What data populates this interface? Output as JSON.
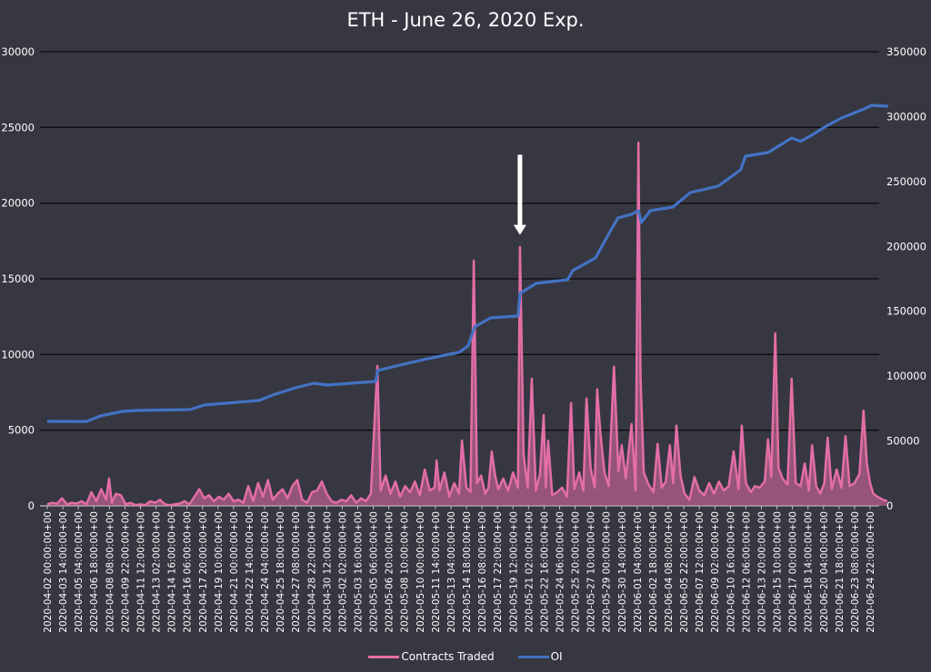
{
  "chart_data": {
    "type": "line",
    "title": "ETH - June 26, 2020 Exp.",
    "grid": true,
    "legend_position": "bottom",
    "y_left": {
      "range": [
        0,
        30000
      ],
      "ticks": [
        "0",
        "5000",
        "10000",
        "15000",
        "20000",
        "25000",
        "30000"
      ]
    },
    "y_right": {
      "range": [
        0,
        350000
      ],
      "ticks": [
        "0",
        "50000",
        "100000",
        "150000",
        "200000",
        "250000",
        "300000",
        "350000"
      ]
    },
    "x_ticks": [
      "2020-04-02 00:00:00+00",
      "2020-04-03 14:00:00+00",
      "2020-04-05 04:00:00+00",
      "2020-04-06 18:00:00+00",
      "2020-04-08 08:00:00+00",
      "2020-04-09 22:00:00+00",
      "2020-04-11 12:00:00+00",
      "2020-04-13 02:00:00+00",
      "2020-04-14 16:00:00+00",
      "2020-04-16 06:00:00+00",
      "2020-04-17 20:00:00+00",
      "2020-04-19 10:00:00+00",
      "2020-04-21 00:00:00+00",
      "2020-04-22 14:00:00+00",
      "2020-04-24 04:00:00+00",
      "2020-04-25 18:00:00+00",
      "2020-04-27 08:00:00+00",
      "2020-04-28 22:00:00+00",
      "2020-04-30 12:00:00+00",
      "2020-05-02 02:00:00+00",
      "2020-05-03 16:00:00+00",
      "2020-05-05 06:00:00+00",
      "2020-05-06 20:00:00+00",
      "2020-05-08 10:00:00+00",
      "2020-05-10 00:00:00+00",
      "2020-05-11 14:00:00+00",
      "2020-05-13 04:00:00+00",
      "2020-05-14 18:00:00+00",
      "2020-05-16 08:00:00+00",
      "2020-05-17 22:00:00+00",
      "2020-05-19 12:00:00+00",
      "2020-05-21 02:00:00+00",
      "2020-05-22 16:00:00+00",
      "2020-05-24 06:00:00+00",
      "2020-05-25 20:00:00+00",
      "2020-05-27 10:00:00+00",
      "2020-05-29 00:00:00+00",
      "2020-05-30 14:00:00+00",
      "2020-06-01 04:00:00+00",
      "2020-06-02 18:00:00+00",
      "2020-06-04 08:00:00+00",
      "2020-06-05 22:00:00+00",
      "2020-06-07 12:00:00+00",
      "2020-06-09 02:00:00+00",
      "2020-06-10 16:00:00+00",
      "2020-06-12 06:00:00+00",
      "2020-06-13 20:00:00+00",
      "2020-06-15 10:00:00+00",
      "2020-06-17 00:00:00+00",
      "2020-06-18 14:00:00+00",
      "2020-06-20 04:00:00+00",
      "2020-06-21 18:00:00+00",
      "2020-06-23 08:00:00+00",
      "2020-06-24 22:00:00+00"
    ],
    "series": [
      {
        "name": "Contracts Traded",
        "axis": "left",
        "color": "#e36ea6",
        "points": [
          [
            "2020-04-02 00",
            100
          ],
          [
            "2020-04-02 12",
            200
          ],
          [
            "2020-04-03 00",
            150
          ],
          [
            "2020-04-03 12",
            500
          ],
          [
            "2020-04-04 00",
            100
          ],
          [
            "2020-04-04 12",
            200
          ],
          [
            "2020-04-05 00",
            150
          ],
          [
            "2020-04-05 12",
            300
          ],
          [
            "2020-04-06 00",
            100
          ],
          [
            "2020-04-06 12",
            900
          ],
          [
            "2020-04-07 00",
            300
          ],
          [
            "2020-04-07 12",
            1100
          ],
          [
            "2020-04-08 00",
            400
          ],
          [
            "2020-04-08 07",
            1800
          ],
          [
            "2020-04-08 14",
            200
          ],
          [
            "2020-04-09 00",
            800
          ],
          [
            "2020-04-09 12",
            700
          ],
          [
            "2020-04-10 00",
            100
          ],
          [
            "2020-04-10 12",
            200
          ],
          [
            "2020-04-11 00",
            50
          ],
          [
            "2020-04-11 12",
            100
          ],
          [
            "2020-04-12 00",
            50
          ],
          [
            "2020-04-12 12",
            300
          ],
          [
            "2020-04-13 00",
            200
          ],
          [
            "2020-04-13 12",
            400
          ],
          [
            "2020-04-14 00",
            100
          ],
          [
            "2020-04-14 12",
            50
          ],
          [
            "2020-04-15 00",
            100
          ],
          [
            "2020-04-15 12",
            150
          ],
          [
            "2020-04-16 00",
            300
          ],
          [
            "2020-04-16 12",
            100
          ],
          [
            "2020-04-17 00",
            600
          ],
          [
            "2020-04-17 12",
            1100
          ],
          [
            "2020-04-18 00",
            500
          ],
          [
            "2020-04-18 12",
            700
          ],
          [
            "2020-04-19 00",
            300
          ],
          [
            "2020-04-19 12",
            600
          ],
          [
            "2020-04-20 00",
            400
          ],
          [
            "2020-04-20 12",
            800
          ],
          [
            "2020-04-21 00",
            300
          ],
          [
            "2020-04-21 12",
            400
          ],
          [
            "2020-04-22 00",
            200
          ],
          [
            "2020-04-22 12",
            1300
          ],
          [
            "2020-04-23 00",
            300
          ],
          [
            "2020-04-23 12",
            1500
          ],
          [
            "2020-04-24 00",
            600
          ],
          [
            "2020-04-24 12",
            1700
          ],
          [
            "2020-04-25 00",
            400
          ],
          [
            "2020-04-25 12",
            800
          ],
          [
            "2020-04-26 00",
            1100
          ],
          [
            "2020-04-26 12",
            500
          ],
          [
            "2020-04-27 00",
            1300
          ],
          [
            "2020-04-27 12",
            1700
          ],
          [
            "2020-04-28 00",
            400
          ],
          [
            "2020-04-28 12",
            200
          ],
          [
            "2020-04-29 00",
            900
          ],
          [
            "2020-04-29 12",
            1000
          ],
          [
            "2020-04-30 00",
            1600
          ],
          [
            "2020-04-30 12",
            800
          ],
          [
            "2020-05-01 00",
            300
          ],
          [
            "2020-05-01 12",
            200
          ],
          [
            "2020-05-02 00",
            400
          ],
          [
            "2020-05-02 12",
            300
          ],
          [
            "2020-05-03 00",
            700
          ],
          [
            "2020-05-03 12",
            200
          ],
          [
            "2020-05-04 00",
            500
          ],
          [
            "2020-05-04 12",
            300
          ],
          [
            "2020-05-05 00",
            800
          ],
          [
            "2020-05-05 16",
            9240
          ],
          [
            "2020-05-06 00",
            1000
          ],
          [
            "2020-05-06 12",
            2000
          ],
          [
            "2020-05-07 00",
            800
          ],
          [
            "2020-05-07 12",
            1600
          ],
          [
            "2020-05-08 00",
            600
          ],
          [
            "2020-05-08 12",
            1300
          ],
          [
            "2020-05-09 00",
            900
          ],
          [
            "2020-05-09 12",
            1600
          ],
          [
            "2020-05-10 00",
            700
          ],
          [
            "2020-05-10 12",
            2400
          ],
          [
            "2020-05-11 00",
            1000
          ],
          [
            "2020-05-11 12",
            1200
          ],
          [
            "2020-05-11 17",
            3000
          ],
          [
            "2020-05-12 00",
            1000
          ],
          [
            "2020-05-12 12",
            2200
          ],
          [
            "2020-05-13 00",
            600
          ],
          [
            "2020-05-13 12",
            1500
          ],
          [
            "2020-05-14 00",
            800
          ],
          [
            "2020-05-14 07",
            4300
          ],
          [
            "2020-05-14 18",
            1200
          ],
          [
            "2020-05-15 04",
            900
          ],
          [
            "2020-05-15 12",
            16200
          ],
          [
            "2020-05-15 20",
            1500
          ],
          [
            "2020-05-16 06",
            2000
          ],
          [
            "2020-05-16 16",
            800
          ],
          [
            "2020-05-17 00",
            1200
          ],
          [
            "2020-05-17 08",
            3600
          ],
          [
            "2020-05-17 16",
            2000
          ],
          [
            "2020-05-18 00",
            1100
          ],
          [
            "2020-05-18 12",
            1800
          ],
          [
            "2020-05-19 00",
            1000
          ],
          [
            "2020-05-19 12",
            2200
          ],
          [
            "2020-05-20 00",
            1200
          ],
          [
            "2020-05-20 05",
            17100
          ],
          [
            "2020-05-20 14",
            3400
          ],
          [
            "2020-05-21 00",
            1200
          ],
          [
            "2020-05-21 10",
            8400
          ],
          [
            "2020-05-21 20",
            1000
          ],
          [
            "2020-05-22 06",
            2100
          ],
          [
            "2020-05-22 15",
            6000
          ],
          [
            "2020-05-22 20",
            1200
          ],
          [
            "2020-05-23 02",
            4300
          ],
          [
            "2020-05-23 12",
            700
          ],
          [
            "2020-05-24 00",
            900
          ],
          [
            "2020-05-24 12",
            1200
          ],
          [
            "2020-05-25 00",
            600
          ],
          [
            "2020-05-25 10",
            6800
          ],
          [
            "2020-05-25 18",
            1100
          ],
          [
            "2020-05-26 06",
            2200
          ],
          [
            "2020-05-26 16",
            1000
          ],
          [
            "2020-05-27 00",
            7100
          ],
          [
            "2020-05-27 10",
            2500
          ],
          [
            "2020-05-27 20",
            1200
          ],
          [
            "2020-05-28 02",
            7700
          ],
          [
            "2020-05-28 10",
            4800
          ],
          [
            "2020-05-28 20",
            2200
          ],
          [
            "2020-05-29 06",
            1300
          ],
          [
            "2020-05-29 19",
            9200
          ],
          [
            "2020-05-30 06",
            2300
          ],
          [
            "2020-05-30 14",
            4000
          ],
          [
            "2020-05-31 00",
            1800
          ],
          [
            "2020-05-31 14",
            5400
          ],
          [
            "2020-06-01 00",
            1000
          ],
          [
            "2020-06-01 07",
            24000
          ],
          [
            "2020-06-01 12",
            8600
          ],
          [
            "2020-06-01 20",
            2200
          ],
          [
            "2020-06-02 08",
            1400
          ],
          [
            "2020-06-02 20",
            900
          ],
          [
            "2020-06-03 06",
            4100
          ],
          [
            "2020-06-03 16",
            1200
          ],
          [
            "2020-06-04 02",
            1600
          ],
          [
            "2020-06-04 12",
            4000
          ],
          [
            "2020-06-04 20",
            1500
          ],
          [
            "2020-06-05 04",
            5300
          ],
          [
            "2020-06-05 14",
            2000
          ],
          [
            "2020-06-06 00",
            800
          ],
          [
            "2020-06-06 12",
            400
          ],
          [
            "2020-06-07 00",
            1900
          ],
          [
            "2020-06-07 12",
            1000
          ],
          [
            "2020-06-08 00",
            700
          ],
          [
            "2020-06-08 12",
            1500
          ],
          [
            "2020-06-09 00",
            800
          ],
          [
            "2020-06-09 12",
            1600
          ],
          [
            "2020-06-10 00",
            1000
          ],
          [
            "2020-06-10 12",
            1300
          ],
          [
            "2020-06-11 00",
            3600
          ],
          [
            "2020-06-11 12",
            1100
          ],
          [
            "2020-06-11 20",
            5300
          ],
          [
            "2020-06-12 06",
            1500
          ],
          [
            "2020-06-12 18",
            900
          ],
          [
            "2020-06-13 04",
            1300
          ],
          [
            "2020-06-13 16",
            1200
          ],
          [
            "2020-06-14 04",
            1600
          ],
          [
            "2020-06-14 12",
            4400
          ],
          [
            "2020-06-14 20",
            1900
          ],
          [
            "2020-06-15 06",
            11400
          ],
          [
            "2020-06-15 14",
            2500
          ],
          [
            "2020-06-16 00",
            1800
          ],
          [
            "2020-06-16 12",
            1400
          ],
          [
            "2020-06-16 22",
            8400
          ],
          [
            "2020-06-17 08",
            1500
          ],
          [
            "2020-06-17 20",
            1300
          ],
          [
            "2020-06-18 06",
            2800
          ],
          [
            "2020-06-18 16",
            1000
          ],
          [
            "2020-06-19 00",
            4000
          ],
          [
            "2020-06-19 10",
            1300
          ],
          [
            "2020-06-19 20",
            800
          ],
          [
            "2020-06-20 06",
            1500
          ],
          [
            "2020-06-20 14",
            4500
          ],
          [
            "2020-06-21 00",
            1100
          ],
          [
            "2020-06-21 12",
            2400
          ],
          [
            "2020-06-22 00",
            1200
          ],
          [
            "2020-06-22 10",
            4600
          ],
          [
            "2020-06-22 20",
            1300
          ],
          [
            "2020-06-23 08",
            1500
          ],
          [
            "2020-06-23 20",
            2100
          ],
          [
            "2020-06-24 06",
            6300
          ],
          [
            "2020-06-24 14",
            2800
          ],
          [
            "2020-06-24 22",
            1500
          ],
          [
            "2020-06-25 06",
            800
          ],
          [
            "2020-06-25 16",
            600
          ],
          [
            "2020-06-26 06",
            400
          ],
          [
            "2020-06-26 16",
            300
          ]
        ]
      },
      {
        "name": "OI",
        "axis": "right",
        "color": "#4472c4",
        "points": [
          [
            "2020-04-02 00",
            65100
          ],
          [
            "2020-04-06 00",
            65000
          ],
          [
            "2020-04-07 10",
            69300
          ],
          [
            "2020-04-09 17",
            72800
          ],
          [
            "2020-04-11 00",
            73500
          ],
          [
            "2020-04-16 14",
            74200
          ],
          [
            "2020-04-18 00",
            77700
          ],
          [
            "2020-04-23 14",
            81200
          ],
          [
            "2020-04-25 00",
            85400
          ],
          [
            "2020-04-27 07",
            91000
          ],
          [
            "2020-04-29 05",
            94500
          ],
          [
            "2020-04-30 12",
            93100
          ],
          [
            "2020-05-04 07",
            95200
          ],
          [
            "2020-05-05 12",
            95900
          ],
          [
            "2020-05-05 17",
            104300
          ],
          [
            "2020-05-08 00",
            108500
          ],
          [
            "2020-05-10 19",
            113400
          ],
          [
            "2020-05-14 00",
            118300
          ],
          [
            "2020-05-14 22",
            123200
          ],
          [
            "2020-05-15 14",
            137900
          ],
          [
            "2020-05-17 05",
            144900
          ],
          [
            "2020-05-20 00",
            146300
          ],
          [
            "2020-05-20 05",
            163800
          ],
          [
            "2020-05-21 21",
            171500
          ],
          [
            "2020-05-25 02",
            174300
          ],
          [
            "2020-05-25 14",
            181300
          ],
          [
            "2020-05-27 22",
            191100
          ],
          [
            "2020-05-29 07",
            210000
          ],
          [
            "2020-05-30 05",
            221900
          ],
          [
            "2020-05-31 14",
            224700
          ],
          [
            "2020-06-01 07",
            227500
          ],
          [
            "2020-06-01 14",
            218400
          ],
          [
            "2020-06-02 12",
            227500
          ],
          [
            "2020-06-04 19",
            230300
          ],
          [
            "2020-06-06 14",
            241500
          ],
          [
            "2020-06-09 10",
            246400
          ],
          [
            "2020-06-11 17",
            259000
          ],
          [
            "2020-06-12 05",
            269500
          ],
          [
            "2020-06-14 12",
            272300
          ],
          [
            "2020-06-16 22",
            283500
          ],
          [
            "2020-06-17 20",
            281000
          ],
          [
            "2020-06-18 19",
            284900
          ],
          [
            "2020-06-20 14",
            293300
          ],
          [
            "2020-06-22 00",
            298900
          ],
          [
            "2020-06-24 07",
            305900
          ],
          [
            "2020-06-25 02",
            308700
          ],
          [
            "2020-06-26 18",
            308000
          ]
        ]
      }
    ],
    "annotations": [
      {
        "type": "arrow",
        "color": "#ffffff",
        "x": "2020-05-20 05",
        "axis": "left",
        "from_y": 23200,
        "to_y": 17900
      }
    ]
  }
}
